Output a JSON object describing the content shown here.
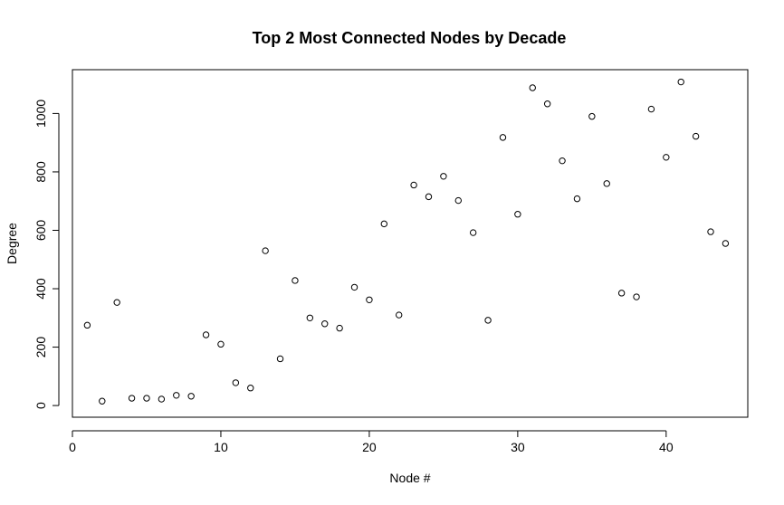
{
  "chart_data": {
    "type": "scatter",
    "title": "Top 2 Most Connected Nodes by Decade",
    "xlabel": "Node #",
    "ylabel": "Degree",
    "xlim": [
      0,
      45.5
    ],
    "ylim": [
      -40,
      1150
    ],
    "x_ticks": [
      0,
      10,
      20,
      30,
      40
    ],
    "y_ticks": [
      0,
      200,
      400,
      600,
      800,
      1000
    ],
    "grid": false,
    "legend": "none",
    "marker": "open-circle",
    "color": "#000000",
    "x": [
      1,
      2,
      3,
      4,
      5,
      6,
      7,
      8,
      9,
      10,
      11,
      12,
      13,
      14,
      15,
      16,
      17,
      18,
      19,
      20,
      21,
      22,
      23,
      24,
      25,
      26,
      27,
      28,
      29,
      30,
      31,
      32,
      33,
      34,
      35,
      36,
      37,
      38,
      39,
      40,
      41,
      42,
      43,
      44
    ],
    "y": [
      275,
      15,
      353,
      25,
      25,
      22,
      35,
      32,
      242,
      210,
      78,
      60,
      530,
      160,
      428,
      300,
      280,
      265,
      405,
      362,
      622,
      310,
      755,
      715,
      785,
      702,
      592,
      292,
      918,
      655,
      1088,
      1033,
      838,
      708,
      990,
      760,
      385,
      372,
      1015,
      850,
      1108,
      922,
      595,
      555
    ]
  }
}
